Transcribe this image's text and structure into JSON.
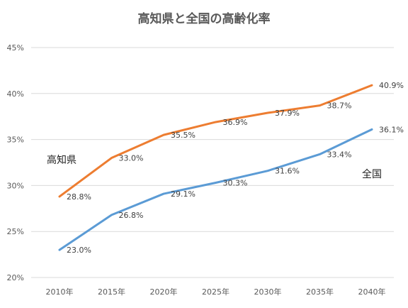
{
  "chart_data": {
    "type": "line",
    "title": "高知県と全国の高齢化率",
    "categories": [
      "2010年",
      "2015年",
      "2020年",
      "2025年",
      "2030年",
      "2035年",
      "2040年"
    ],
    "ylim": [
      20,
      45
    ],
    "yticks": [
      20,
      25,
      30,
      35,
      40,
      45
    ],
    "ytick_labels": [
      "20%",
      "25%",
      "30%",
      "35%",
      "40%",
      "45%"
    ],
    "grid": true,
    "legend": "none",
    "series": [
      {
        "name": "高知県",
        "color": "#ed7d31",
        "values": [
          28.8,
          33.0,
          35.5,
          36.9,
          37.9,
          38.7,
          40.9
        ],
        "labels": [
          "28.8%",
          "33.0%",
          "35.5%",
          "36.9%",
          "37.9%",
          "38.7%",
          "40.9%"
        ]
      },
      {
        "name": "全国",
        "color": "#5b9bd5",
        "values": [
          23.0,
          26.8,
          29.1,
          30.3,
          31.6,
          33.4,
          36.1
        ],
        "labels": [
          "23.0%",
          "26.8%",
          "29.1%",
          "30.3%",
          "31.6%",
          "33.4%",
          "36.1%"
        ]
      }
    ]
  }
}
